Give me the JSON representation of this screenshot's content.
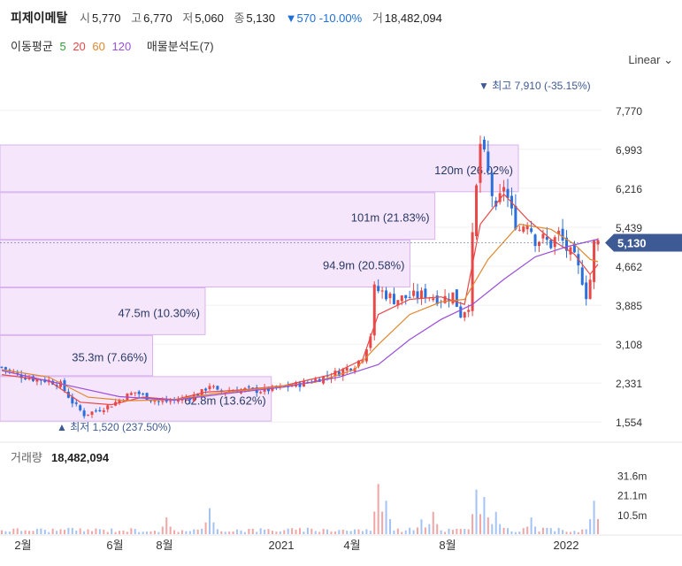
{
  "header": {
    "name": "피제이메탈",
    "open_label": "시",
    "open": "5,770",
    "high_label": "고",
    "high": "6,770",
    "low_label": "저",
    "low": "5,060",
    "close_label": "종",
    "close": "5,130",
    "change": "▼570",
    "change_pct": "-10.00%",
    "volume_label": "거",
    "volume": "18,482,094"
  },
  "ma_legend": {
    "label": "이동평균",
    "periods": [
      "5",
      "20",
      "60",
      "120"
    ],
    "colors": [
      "#2e9e3a",
      "#e84848",
      "#e0872e",
      "#9b4fd8"
    ],
    "profile_label": "매물분석도(7)"
  },
  "scale_mode": "Linear",
  "colors": {
    "up": "#e84848",
    "down": "#2a6fdb",
    "profile": "#f5e6fb",
    "profile_border": "#d9b3ee",
    "price_tag": "#3d5a94"
  },
  "chart_data": {
    "type": "candlestick",
    "y_ticks": [
      "7,770",
      "6,993",
      "6,216",
      "5,439",
      "4,662",
      "3,885",
      "3,108",
      "2,331",
      "1,554"
    ],
    "y_tick_values": [
      7770,
      6993,
      6216,
      5439,
      4662,
      3885,
      3108,
      2331,
      1554
    ],
    "ylim": [
      1240,
      8420
    ],
    "x_ticks": [
      "2월",
      "6월",
      "8월",
      "2021",
      "4월",
      "8월",
      "2022"
    ],
    "current_price_tag": "5,130",
    "high_annotation": "▼ 최고 7,910 (-35.15%)",
    "low_annotation": "▲ 최저 1,520 (237.50%)",
    "volume_panel": {
      "label": "거래량",
      "value": "18,482,094",
      "y_ticks": [
        "31.6m",
        "21.1m",
        "10.5m"
      ],
      "y_tick_values": [
        31.6,
        21.1,
        10.5
      ]
    },
    "volume_profile": [
      {
        "label": "62.8m (13.62%)",
        "low": 1554,
        "high": 2460,
        "pct": 13.62
      },
      {
        "label": "35.3m (7.66%)",
        "low": 2460,
        "high": 3280,
        "pct": 7.66
      },
      {
        "label": "47.5m (10.30%)",
        "low": 3280,
        "high": 4230,
        "pct": 10.3
      },
      {
        "label": "94.9m (20.58%)",
        "low": 4230,
        "high": 5180,
        "pct": 20.58
      },
      {
        "label": "101m (21.83%)",
        "low": 5180,
        "high": 6130,
        "pct": 21.83
      },
      {
        "label": "120m (26.02%)",
        "low": 6130,
        "high": 7080,
        "pct": 26.02
      }
    ],
    "close_path": [
      [
        0,
        2650
      ],
      [
        4,
        2500
      ],
      [
        8,
        2420
      ],
      [
        12,
        2380
      ],
      [
        15,
        2300
      ],
      [
        18,
        1950
      ],
      [
        21,
        1700
      ],
      [
        24,
        1780
      ],
      [
        28,
        1900
      ],
      [
        31,
        2050
      ],
      [
        34,
        2150
      ],
      [
        37,
        2050
      ],
      [
        40,
        1950
      ],
      [
        44,
        1980
      ],
      [
        48,
        2050
      ],
      [
        51,
        2150
      ],
      [
        53,
        2300
      ],
      [
        55,
        2150
      ],
      [
        58,
        2180
      ],
      [
        62,
        2200
      ],
      [
        66,
        2180
      ],
      [
        70,
        2220
      ],
      [
        74,
        2280
      ],
      [
        78,
        2350
      ],
      [
        82,
        2450
      ],
      [
        86,
        2550
      ],
      [
        90,
        2700
      ],
      [
        92,
        2850
      ],
      [
        94,
        3300
      ],
      [
        95,
        4200
      ],
      [
        97,
        4150
      ],
      [
        100,
        4000
      ],
      [
        104,
        4050
      ],
      [
        108,
        4100
      ],
      [
        112,
        4000
      ],
      [
        115,
        4100
      ],
      [
        117,
        3700
      ],
      [
        119,
        3900
      ],
      [
        120,
        5200
      ],
      [
        121,
        6200
      ],
      [
        122,
        7100
      ],
      [
        124,
        6500
      ],
      [
        126,
        5700
      ],
      [
        128,
        6300
      ],
      [
        130,
        5700
      ],
      [
        132,
        5400
      ],
      [
        134,
        5600
      ],
      [
        136,
        5200
      ],
      [
        138,
        5200
      ],
      [
        140,
        5100
      ],
      [
        142,
        5300
      ],
      [
        144,
        5000
      ],
      [
        146,
        4800
      ],
      [
        148,
        4400
      ],
      [
        149,
        4100
      ],
      [
        150,
        4400
      ],
      [
        151,
        5100
      ],
      [
        152,
        5130
      ]
    ],
    "ma_paths": {
      "ma20": [
        [
          0,
          2500
        ],
        [
          12,
          2380
        ],
        [
          20,
          1950
        ],
        [
          28,
          1900
        ],
        [
          36,
          2050
        ],
        [
          44,
          2000
        ],
        [
          52,
          2150
        ],
        [
          62,
          2200
        ],
        [
          72,
          2280
        ],
        [
          84,
          2500
        ],
        [
          92,
          2800
        ],
        [
          96,
          3700
        ],
        [
          104,
          4000
        ],
        [
          112,
          4050
        ],
        [
          118,
          3900
        ],
        [
          122,
          5500
        ],
        [
          128,
          6100
        ],
        [
          134,
          5600
        ],
        [
          140,
          5200
        ],
        [
          146,
          4900
        ],
        [
          150,
          4500
        ],
        [
          152,
          4700
        ]
      ],
      "ma60": [
        [
          0,
          2600
        ],
        [
          12,
          2450
        ],
        [
          22,
          2050
        ],
        [
          32,
          1980
        ],
        [
          44,
          2000
        ],
        [
          54,
          2120
        ],
        [
          66,
          2220
        ],
        [
          80,
          2350
        ],
        [
          90,
          2600
        ],
        [
          96,
          3100
        ],
        [
          104,
          3700
        ],
        [
          112,
          3950
        ],
        [
          118,
          4000
        ],
        [
          124,
          4800
        ],
        [
          132,
          5500
        ],
        [
          140,
          5400
        ],
        [
          146,
          5100
        ],
        [
          150,
          4800
        ],
        [
          152,
          4750
        ]
      ],
      "ma120": [
        [
          0,
          2580
        ],
        [
          16,
          2300
        ],
        [
          30,
          2060
        ],
        [
          44,
          1990
        ],
        [
          58,
          2130
        ],
        [
          72,
          2250
        ],
        [
          86,
          2450
        ],
        [
          96,
          2700
        ],
        [
          104,
          3200
        ],
        [
          112,
          3600
        ],
        [
          120,
          3900
        ],
        [
          128,
          4400
        ],
        [
          136,
          4850
        ],
        [
          144,
          5050
        ],
        [
          152,
          5200
        ]
      ]
    },
    "volume_spikes": [
      [
        42,
        9
      ],
      [
        53,
        14
      ],
      [
        96,
        27
      ],
      [
        98,
        18
      ],
      [
        107,
        8
      ],
      [
        110,
        12
      ],
      [
        121,
        24
      ],
      [
        123,
        20
      ],
      [
        126,
        12
      ],
      [
        135,
        9
      ],
      [
        151,
        18
      ]
    ]
  }
}
